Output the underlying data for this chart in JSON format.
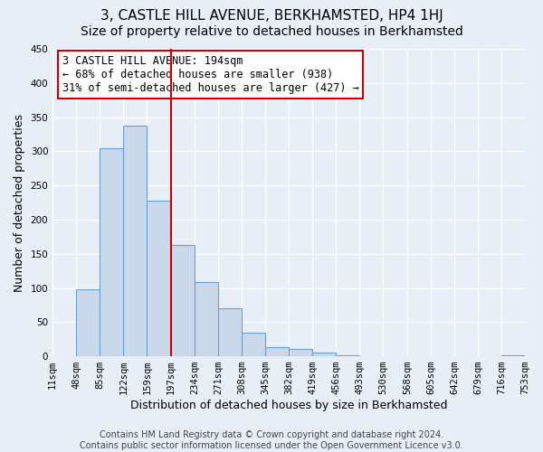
{
  "title": "3, CASTLE HILL AVENUE, BERKHAMSTED, HP4 1HJ",
  "subtitle": "Size of property relative to detached houses in Berkhamsted",
  "xlabel": "Distribution of detached houses by size in Berkhamsted",
  "ylabel": "Number of detached properties",
  "footer_lines": [
    "Contains HM Land Registry data © Crown copyright and database right 2024.",
    "Contains public sector information licensed under the Open Government Licence v3.0."
  ],
  "bin_edges": [
    11,
    48,
    85,
    122,
    159,
    197,
    234,
    271,
    308,
    345,
    382,
    419,
    456,
    493,
    530,
    568,
    605,
    642,
    679,
    716,
    753
  ],
  "bin_labels": [
    "11sqm",
    "48sqm",
    "85sqm",
    "122sqm",
    "159sqm",
    "197sqm",
    "234sqm",
    "271sqm",
    "308sqm",
    "345sqm",
    "382sqm",
    "419sqm",
    "456sqm",
    "493sqm",
    "530sqm",
    "568sqm",
    "605sqm",
    "642sqm",
    "679sqm",
    "716sqm",
    "753sqm"
  ],
  "bar_heights": [
    0,
    98,
    305,
    338,
    228,
    163,
    109,
    70,
    35,
    14,
    11,
    5,
    2,
    0,
    0,
    0,
    0,
    0,
    0,
    2
  ],
  "bar_facecolor": "#c9d8ea",
  "bar_edgecolor": "#6b9fcf",
  "vline_x": 197,
  "vline_color": "#cc0000",
  "annotation_lines": [
    "3 CASTLE HILL AVENUE: 194sqm",
    "← 68% of detached houses are smaller (938)",
    "31% of semi-detached houses are larger (427) →"
  ],
  "annotation_box_edgecolor": "#cc0000",
  "annotation_box_facecolor": "#ffffff",
  "ylim": [
    0,
    450
  ],
  "yticks": [
    0,
    50,
    100,
    150,
    200,
    250,
    300,
    350,
    400,
    450
  ],
  "background_color": "#e8eef5",
  "axes_facecolor": "#e8eef5",
  "grid_color": "#ffffff",
  "title_fontsize": 11,
  "subtitle_fontsize": 10,
  "axis_label_fontsize": 9,
  "tick_fontsize": 7.5,
  "footer_fontsize": 7
}
